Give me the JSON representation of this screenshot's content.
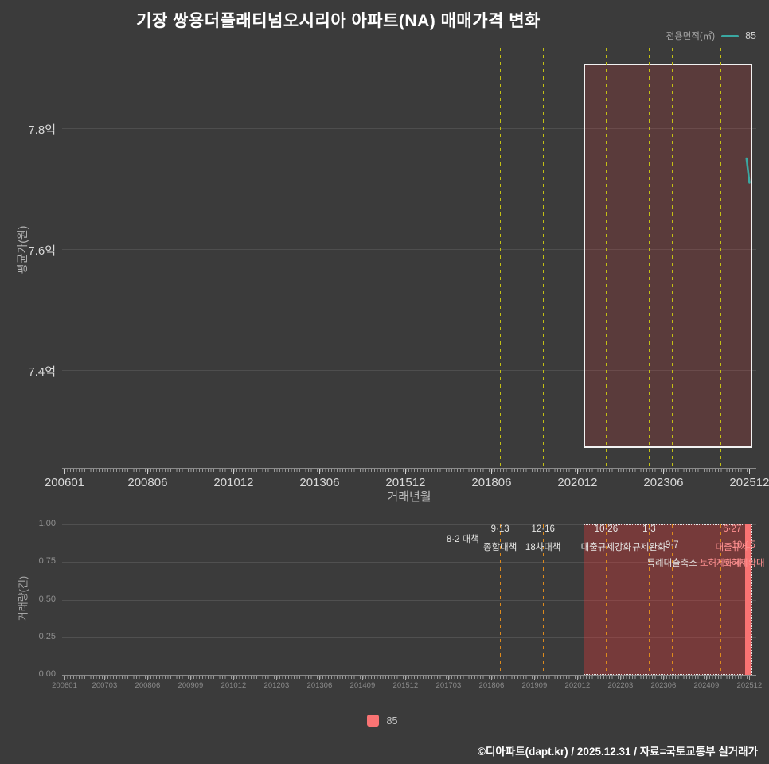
{
  "title": "기장 쌍용더플래티넘오시리아 아파트(NA) 매매가격 변화",
  "legend_top": {
    "label": "전용면적(㎡)",
    "series": "85",
    "color": "#3aa8a2"
  },
  "legend_bottom": {
    "series": "85",
    "color": "#f97373"
  },
  "footer": "©디아파트(dapt.kr) / 2025.12.31 / 자료=국토교통부 실거래가",
  "chart_data": [
    {
      "type": "line",
      "title": "기장 쌍용더플래티넘오시리아 아파트(NA) 매매가격 변화",
      "xlabel": "거래년월",
      "ylabel": "평균가(원)",
      "x_domain": [
        "200601",
        "202512"
      ],
      "x_major_ticks": [
        "200601",
        "200806",
        "201012",
        "201306",
        "201512",
        "201806",
        "202012",
        "202306",
        "202512"
      ],
      "y_ticks": [
        {
          "label": "7.4억",
          "value": 7.4
        },
        {
          "label": "7.6억",
          "value": 7.6
        },
        {
          "label": "7.8억",
          "value": 7.8
        }
      ],
      "ylim": [
        7.238,
        7.933
      ],
      "grid": true,
      "legend_position": "top-right",
      "series": [
        {
          "name": "85",
          "color": "#3aa8a2",
          "points": [
            {
              "x": "202511",
              "y_eok": 7.75
            },
            {
              "x": "202512",
              "y_eok": 7.71
            }
          ]
        }
      ],
      "policy_line_color": "#c3c014",
      "policy_lines": [
        "201708",
        "201809",
        "201912",
        "202110",
        "202301",
        "202309",
        "202502",
        "202506",
        "202510"
      ],
      "highlight": {
        "x0": "202102",
        "x1": "202601",
        "fill": "rgba(255,60,60,0.16)",
        "border": "#f2f2f2"
      }
    },
    {
      "type": "bar",
      "ylabel": "거래량(건)",
      "x_ticks": [
        "200601",
        "200703",
        "200806",
        "200909",
        "201012",
        "201203",
        "201306",
        "201409",
        "201512",
        "201703",
        "201806",
        "201909",
        "202012",
        "202203",
        "202306",
        "202409",
        "202512"
      ],
      "y_ticks": [
        {
          "label": "0.00",
          "value": 0
        },
        {
          "label": "0.25",
          "value": 0.25
        },
        {
          "label": "0.50",
          "value": 0.5
        },
        {
          "label": "0.75",
          "value": 0.75
        },
        {
          "label": "1.00",
          "value": 1
        }
      ],
      "ylim": [
        0,
        1
      ],
      "bar_color": "#f97373",
      "bars": [
        {
          "x": "202511",
          "value": 1
        },
        {
          "x": "202512",
          "value": 1
        }
      ],
      "policy_line_color": "#dd8a1c",
      "highlight": {
        "x0": "202102",
        "x1": "202601",
        "fill": "rgba(255,55,55,0.30)",
        "border": "#e8e8e8"
      },
      "annotations": [
        {
          "x": "201708",
          "lines": [
            "8·2 대책"
          ],
          "row": 0.5,
          "color": "#e6e6e4"
        },
        {
          "x": "201809",
          "lines": [
            "9·13",
            "종합대책"
          ],
          "row": 0,
          "color": "#e6e6e4"
        },
        {
          "x": "201912",
          "lines": [
            "12·16",
            "18차대책"
          ],
          "row": 0,
          "color": "#e6e6e4"
        },
        {
          "x": "202110",
          "lines": [
            "10·26",
            "대출규제강화"
          ],
          "row": 0,
          "color": "#e6e6e4"
        },
        {
          "x": "202301",
          "lines": [
            "1·3",
            "규제완화"
          ],
          "row": 0,
          "color": "#e6e6e4"
        },
        {
          "x": "202309",
          "lines": [
            "9·7",
            "특례대출축소"
          ],
          "row": 1,
          "color": "#e6e6e4"
        },
        {
          "x": "202502",
          "lines": [
            "토허제해제"
          ],
          "row": 2,
          "color": "#ff9090"
        },
        {
          "x": "202506",
          "lines": [
            "6·27",
            "대출규제"
          ],
          "row": 0,
          "color": "#ff9090"
        },
        {
          "x": "202510",
          "lines": [
            "10·15",
            "토허제확대"
          ],
          "row": 1,
          "color": "#ff9090"
        }
      ]
    }
  ]
}
